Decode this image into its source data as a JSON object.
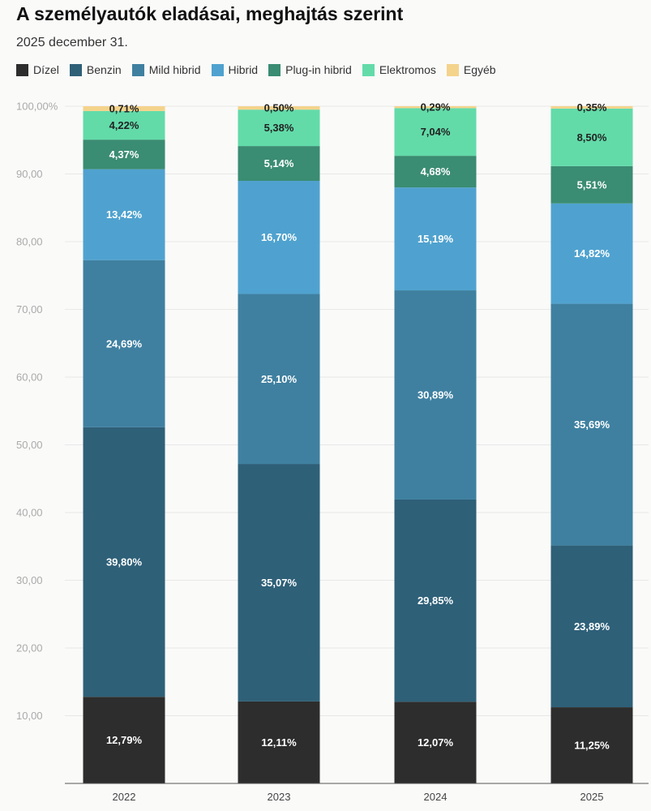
{
  "header": {
    "title": "A személyautók eladásai, meghajtás szerint",
    "subtitle": "2025 december 31."
  },
  "chart_data": {
    "type": "bar",
    "stacked": true,
    "title": "A személyautók eladásai, meghajtás szerint",
    "subtitle": "2025 december 31.",
    "xlabel": "",
    "ylabel": "",
    "ylim": [
      0,
      100
    ],
    "grid": true,
    "legend_position": "top-left",
    "categories": [
      "2022",
      "2023",
      "2024",
      "2025"
    ],
    "y_ticks": [
      {
        "value": 10,
        "label": "10,00"
      },
      {
        "value": 20,
        "label": "20,00"
      },
      {
        "value": 30,
        "label": "30,00"
      },
      {
        "value": 40,
        "label": "40,00"
      },
      {
        "value": 50,
        "label": "50,00"
      },
      {
        "value": 60,
        "label": "60,00"
      },
      {
        "value": 70,
        "label": "70,00"
      },
      {
        "value": 80,
        "label": "80,00"
      },
      {
        "value": 90,
        "label": "90,00"
      },
      {
        "value": 100,
        "label": "100,00%"
      }
    ],
    "series": [
      {
        "name": "Dízel",
        "color": "#2d2d2d",
        "label_color": "#ffffff",
        "values": [
          12.79,
          12.11,
          12.07,
          11.25
        ],
        "labels": [
          "12,79%",
          "12,11%",
          "12,07%",
          "11,25%"
        ]
      },
      {
        "name": "Benzin",
        "color": "#2e6078",
        "label_color": "#ffffff",
        "values": [
          39.8,
          35.07,
          29.85,
          23.89
        ],
        "labels": [
          "39,80%",
          "35,07%",
          "29,85%",
          "23,89%"
        ]
      },
      {
        "name": "Mild hibrid",
        "color": "#3f80a0",
        "label_color": "#ffffff",
        "values": [
          24.69,
          25.1,
          30.89,
          35.69
        ],
        "labels": [
          "24,69%",
          "25,10%",
          "30,89%",
          "35,69%"
        ]
      },
      {
        "name": "Hibrid",
        "color": "#4fa2cf",
        "label_color": "#ffffff",
        "values": [
          13.42,
          16.7,
          15.19,
          14.82
        ],
        "labels": [
          "13,42%",
          "16,70%",
          "15,19%",
          "14,82%"
        ]
      },
      {
        "name": "Plug-in hibrid",
        "color": "#3a8c72",
        "label_color": "#ffffff",
        "values": [
          4.37,
          5.14,
          4.68,
          5.51
        ],
        "labels": [
          "4,37%",
          "5,14%",
          "4,68%",
          "5,51%"
        ]
      },
      {
        "name": "Elektromos",
        "color": "#62dba9",
        "label_color": "#222222",
        "values": [
          4.22,
          5.38,
          7.04,
          8.5
        ],
        "labels": [
          "4,22%",
          "5,38%",
          "7,04%",
          "8,50%"
        ]
      },
      {
        "name": "Egyéb",
        "color": "#f4d38b",
        "label_color": "#222222",
        "values": [
          0.71,
          0.5,
          0.29,
          0.35
        ],
        "labels": [
          "0,71%",
          "0,50%",
          "0,29%",
          "0,35%"
        ]
      }
    ]
  }
}
